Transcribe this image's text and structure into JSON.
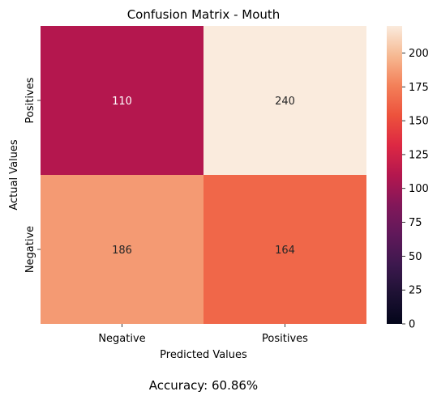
{
  "chart_data": {
    "type": "heatmap",
    "title": "Confusion Matrix - Mouth",
    "xlabel": "Predicted Values",
    "ylabel": "Actual Values",
    "x_categories": [
      "Negative",
      "Positives"
    ],
    "y_categories": [
      "Positives",
      "Negative"
    ],
    "values": [
      [
        110,
        240
      ],
      [
        186,
        164
      ]
    ],
    "colorbar": {
      "min": 0,
      "max": 220,
      "ticks": [
        0,
        25,
        50,
        75,
        100,
        125,
        150,
        175,
        200
      ]
    },
    "colormap": "rocket"
  },
  "footer": {
    "accuracy_text": "Accuracy: 60.86%"
  }
}
